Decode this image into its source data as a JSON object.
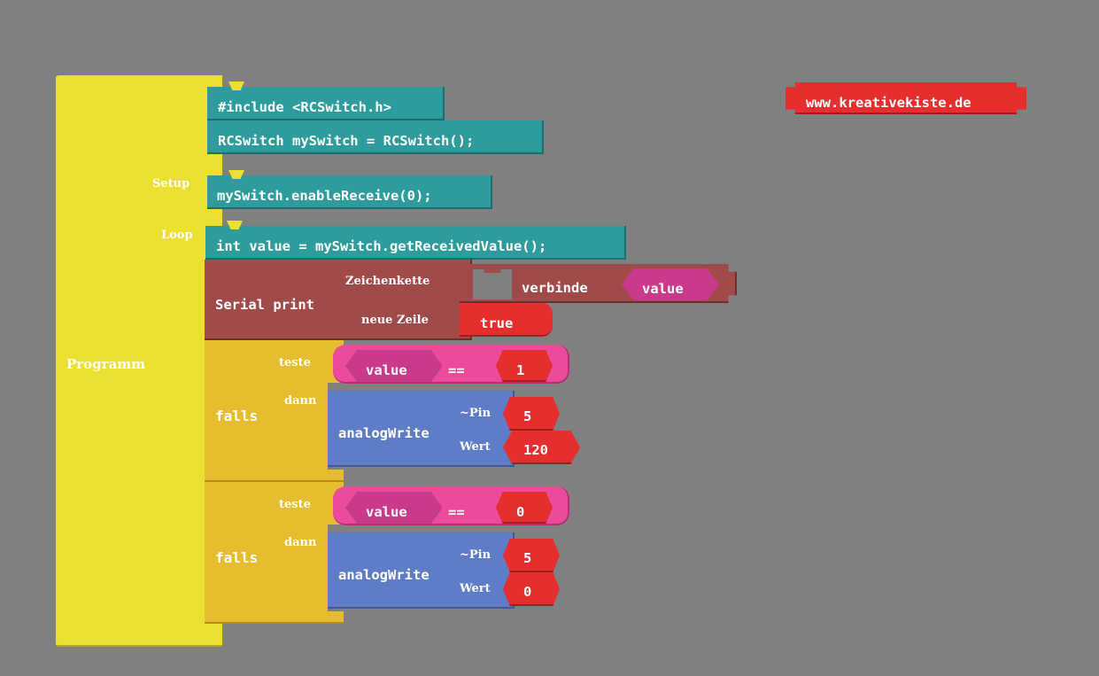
{
  "program": {
    "label": "Programm",
    "setup_label": "Setup",
    "loop_label": "Loop"
  },
  "globals": {
    "include": "#include <RCSwitch.h>",
    "declare": "RCSwitch mySwitch = RCSwitch();"
  },
  "setup": {
    "enable": "mySwitch.enableReceive(0);"
  },
  "loop": {
    "get_value": "int value = mySwitch.getReceivedValue();",
    "serial": {
      "label": "Serial print",
      "string_label": "Zeichenkette",
      "newline_label": "neue Zeile",
      "join_label": "verbinde",
      "join_var": "value",
      "newline_value": "true"
    },
    "if1": {
      "falls": "falls",
      "teste": "teste",
      "dann": "dann",
      "var": "value",
      "op": "==",
      "cmp": "1",
      "write_label": "analogWrite",
      "pin_label": "~Pin",
      "pin_value": "5",
      "wert_label": "Wert",
      "wert_value": "120"
    },
    "if2": {
      "falls": "falls",
      "teste": "teste",
      "dann": "dann",
      "var": "value",
      "op": "==",
      "cmp": "0",
      "write_label": "analogWrite",
      "pin_label": "~Pin",
      "pin_value": "5",
      "wert_label": "Wert",
      "wert_value": "0"
    }
  },
  "website": "www.kreativekiste.de",
  "colors": {
    "background": "#808080",
    "program": "#ebe02f",
    "code": "#2e9c9c",
    "serial": "#a14a4a",
    "control": "#e6bd2f",
    "logic": "#ec4b9c",
    "variable": "#c93a8a",
    "value": "#e62e2e",
    "io": "#5f7cc7"
  }
}
